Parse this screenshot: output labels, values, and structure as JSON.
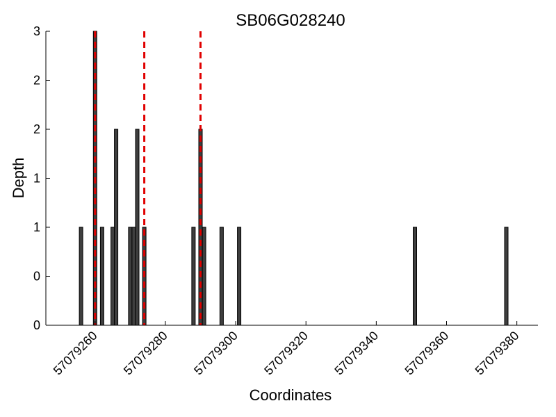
{
  "chart_data": {
    "type": "bar",
    "title": "SB06G028240",
    "xlabel": "Coordinates",
    "ylabel": "Depth",
    "xlim": [
      57079246,
      57079386
    ],
    "ylim": [
      0,
      3
    ],
    "y_ticks": [
      0,
      0.5,
      1,
      1.5,
      2,
      2.5,
      3
    ],
    "y_tick_labels": [
      "0",
      "0",
      "1",
      "1",
      "2",
      "2",
      "3"
    ],
    "x_ticks": [
      57079260,
      57079280,
      57079300,
      57079320,
      57079340,
      57079360,
      57079380
    ],
    "x_tick_labels": [
      "57079260",
      "57079280",
      "57079300",
      "57079320",
      "57079340",
      "57079360",
      "57079380"
    ],
    "bar_color": "#3f3f3f",
    "bars": [
      {
        "x": 57079256,
        "depth": 1
      },
      {
        "x": 57079260,
        "depth": 3
      },
      {
        "x": 57079262,
        "depth": 1
      },
      {
        "x": 57079265,
        "depth": 1
      },
      {
        "x": 57079266,
        "depth": 2
      },
      {
        "x": 57079270,
        "depth": 1
      },
      {
        "x": 57079271,
        "depth": 1
      },
      {
        "x": 57079272,
        "depth": 2
      },
      {
        "x": 57079274,
        "depth": 1
      },
      {
        "x": 57079288,
        "depth": 1
      },
      {
        "x": 57079290,
        "depth": 2
      },
      {
        "x": 57079291,
        "depth": 1
      },
      {
        "x": 57079296,
        "depth": 1
      },
      {
        "x": 57079301,
        "depth": 1
      },
      {
        "x": 57079351,
        "depth": 1
      },
      {
        "x": 57079377,
        "depth": 1
      }
    ],
    "markers": {
      "color": "#e00000",
      "style": "dashed",
      "x": [
        57079260,
        57079274,
        57079290
      ]
    }
  }
}
